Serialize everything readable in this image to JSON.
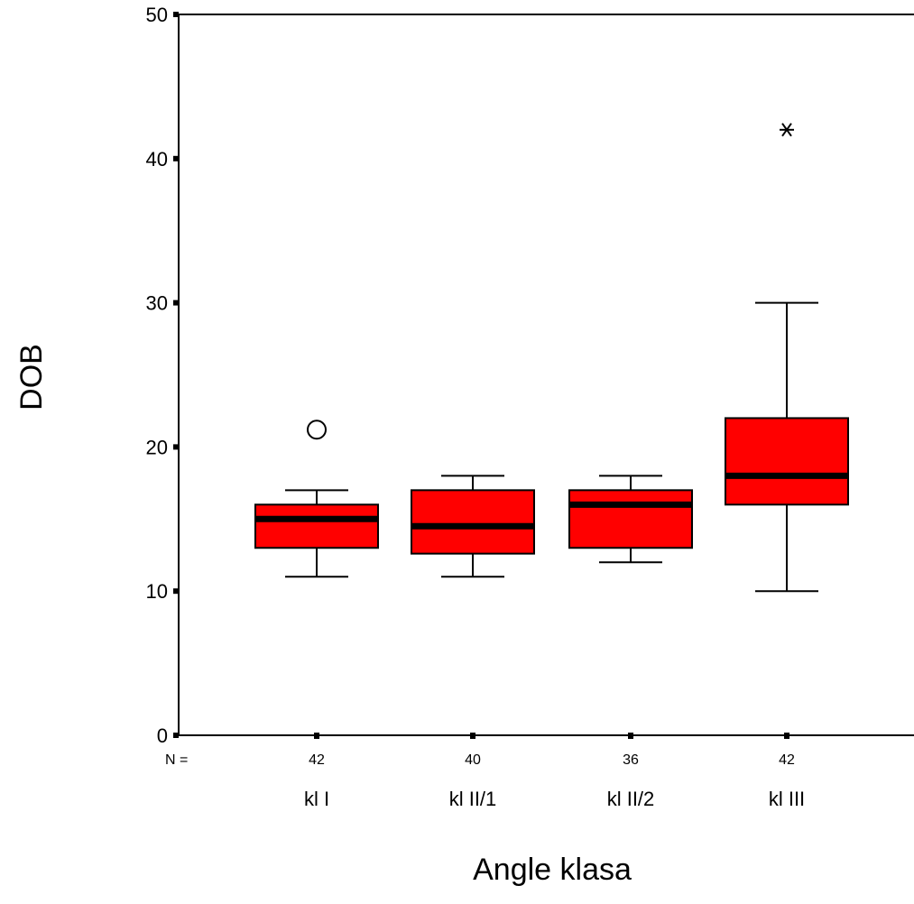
{
  "chart_data": {
    "type": "boxplot",
    "xlabel": "Angle klasa",
    "ylabel": "DOB",
    "ylim": [
      0,
      50
    ],
    "yticks": [
      0,
      10,
      20,
      30,
      40,
      50
    ],
    "n_prefix": "N =",
    "box_color": "#ff0000",
    "categories": [
      {
        "label": "kl I",
        "n": "42",
        "min": 11,
        "q1": 13,
        "median": 15,
        "q3": 16,
        "max": 17,
        "outliers": [
          21.2
        ],
        "extremes": []
      },
      {
        "label": "kl II/1",
        "n": "40",
        "min": 11,
        "q1": 12.6,
        "median": 14.5,
        "q3": 17,
        "max": 18,
        "outliers": [],
        "extremes": []
      },
      {
        "label": "kl II/2",
        "n": "36",
        "min": 12,
        "q1": 13,
        "median": 16,
        "q3": 17,
        "max": 18,
        "outliers": [],
        "extremes": []
      },
      {
        "label": "kl III",
        "n": "42",
        "min": 10,
        "q1": 16,
        "median": 18,
        "q3": 22,
        "max": 30,
        "outliers": [],
        "extremes": [
          42
        ]
      }
    ]
  }
}
